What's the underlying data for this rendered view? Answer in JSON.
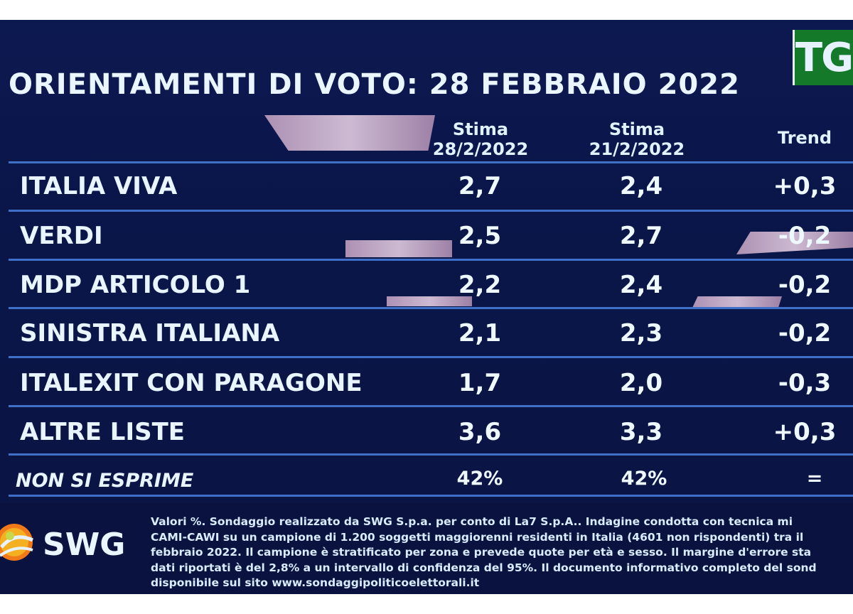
{
  "channel_logo": "TG",
  "title": "ORIENTAMENTI DI VOTO: 28 FEBBRAIO 2022",
  "columns": {
    "col1_line1": "Stima",
    "col1_line2": "28/2/2022",
    "col2_line1": "Stima",
    "col2_line2": "21/2/2022",
    "col3": "Trend"
  },
  "rows": [
    {
      "party": "ITALIA VIVA",
      "stima_28": "2,7",
      "stima_21": "2,4",
      "trend": "+0,3"
    },
    {
      "party": "VERDI",
      "stima_28": "2,5",
      "stima_21": "2,7",
      "trend": "-0,2"
    },
    {
      "party": "MDP ARTICOLO 1",
      "stima_28": "2,2",
      "stima_21": "2,4",
      "trend": "-0,2"
    },
    {
      "party": "SINISTRA ITALIANA",
      "stima_28": "2,1",
      "stima_21": "2,3",
      "trend": "-0,2"
    },
    {
      "party": "ITALEXIT CON PARAGONE",
      "stima_28": "1,7",
      "stima_21": "2,0",
      "trend": "-0,3"
    },
    {
      "party": "ALTRE LISTE",
      "stima_28": "3,6",
      "stima_21": "3,3",
      "trend": "+0,3"
    }
  ],
  "non_si_esprime": {
    "label": "NON SI ESPRIME",
    "stima_28": "42%",
    "stima_21": "42%",
    "trend": "="
  },
  "source_logo": "SWG",
  "footnote": "Valori %. Sondaggio realizzato da SWG S.p.a. per conto di La7 S.p.A.. Indagine condotta con tecnica mi\nCAMI-CAWI su un campione di 1.200 soggetti maggiorenni residenti in Italia (4601 non rispondenti) tra il\nfebbraio 2022. Il campione è stratificato per zona e prevede quote per età e sesso. Il margine d'errore sta\ndati riportati è del 2,8% a un intervallo di confidenza del 95%. Il documento informativo completo del sond\ndisponibile sul sito www.sondaggipoliticoelettorali.it",
  "colors": {
    "background": "#0b1749",
    "divider": "#3f6fc6",
    "logo_green": "#147a2a",
    "text": "#e8f5ff"
  }
}
